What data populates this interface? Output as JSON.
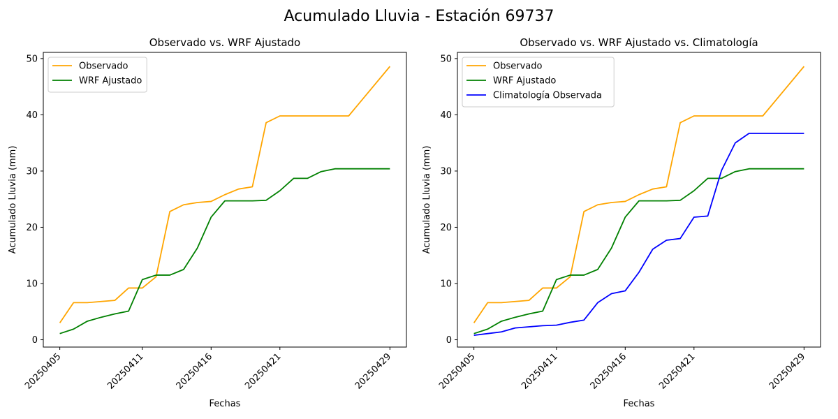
{
  "figure": {
    "suptitle": "Acumulado Lluvia - Estación 69737"
  },
  "colors": {
    "observado": "#ffa500",
    "wrf": "#008000",
    "clim": "#0000ff"
  },
  "chart_data": [
    {
      "type": "line",
      "title": "Observado vs. WRF Ajustado",
      "xlabel": "Fechas",
      "ylabel": "Acumulado Lluvia (mm)",
      "x_ticks": [
        "20250405",
        "20250411",
        "20250416",
        "20250421",
        "20250429"
      ],
      "y_ticks": [
        0,
        10,
        20,
        30,
        40,
        50
      ],
      "ylim": [
        -1.3,
        51.1
      ],
      "legend_position": "upper-left",
      "grid": false,
      "x": [
        "20250405",
        "20250406",
        "20250407",
        "20250408",
        "20250409",
        "20250410",
        "20250411",
        "20250412",
        "20250413",
        "20250414",
        "20250415",
        "20250416",
        "20250417",
        "20250418",
        "20250419",
        "20250420",
        "20250421",
        "20250422",
        "20250423",
        "20250424",
        "20250425",
        "20250426",
        "20250429"
      ],
      "series": [
        {
          "name": "Observado",
          "color_key": "observado",
          "values": [
            3.0,
            6.6,
            6.6,
            6.8,
            7.0,
            9.2,
            9.2,
            11.2,
            22.8,
            24.0,
            24.4,
            24.6,
            25.8,
            26.8,
            27.2,
            38.6,
            39.8,
            39.8,
            39.8,
            39.8,
            39.8,
            39.8,
            48.6
          ]
        },
        {
          "name": "WRF Ajustado",
          "color_key": "wrf",
          "values": [
            1.1,
            1.9,
            3.3,
            4.0,
            4.6,
            5.1,
            10.7,
            11.5,
            11.5,
            12.5,
            16.3,
            21.8,
            24.7,
            24.7,
            24.7,
            24.8,
            26.5,
            28.7,
            28.7,
            29.9,
            30.4,
            30.4,
            30.4
          ]
        }
      ]
    },
    {
      "type": "line",
      "title": "Observado vs. WRF Ajustado vs. Climatología",
      "xlabel": "Fechas",
      "ylabel": "Acumulado Lluvia (mm)",
      "x_ticks": [
        "20250405",
        "20250411",
        "20250416",
        "20250421",
        "20250429"
      ],
      "y_ticks": [
        0,
        10,
        20,
        30,
        40,
        50
      ],
      "ylim": [
        -1.3,
        51.1
      ],
      "legend_position": "upper-left",
      "grid": false,
      "x": [
        "20250405",
        "20250406",
        "20250407",
        "20250408",
        "20250409",
        "20250410",
        "20250411",
        "20250412",
        "20250413",
        "20250414",
        "20250415",
        "20250416",
        "20250417",
        "20250418",
        "20250419",
        "20250420",
        "20250421",
        "20250422",
        "20250423",
        "20250424",
        "20250425",
        "20250426",
        "20250429"
      ],
      "series": [
        {
          "name": "Observado",
          "color_key": "observado",
          "values": [
            3.0,
            6.6,
            6.6,
            6.8,
            7.0,
            9.2,
            9.2,
            11.2,
            22.8,
            24.0,
            24.4,
            24.6,
            25.8,
            26.8,
            27.2,
            38.6,
            39.8,
            39.8,
            39.8,
            39.8,
            39.8,
            39.8,
            48.6
          ]
        },
        {
          "name": "WRF Ajustado",
          "color_key": "wrf",
          "values": [
            1.1,
            1.9,
            3.3,
            4.0,
            4.6,
            5.1,
            10.7,
            11.5,
            11.5,
            12.5,
            16.3,
            21.8,
            24.7,
            24.7,
            24.7,
            24.8,
            26.5,
            28.7,
            28.7,
            29.9,
            30.4,
            30.4,
            30.4
          ]
        },
        {
          "name": "Climatología Observada",
          "color_key": "clim",
          "values": [
            0.8,
            1.1,
            1.4,
            2.1,
            2.3,
            2.5,
            2.6,
            3.1,
            3.5,
            6.6,
            8.2,
            8.7,
            12.0,
            16.1,
            17.7,
            18.0,
            21.8,
            22.0,
            30.1,
            35.0,
            36.7,
            36.7,
            36.7
          ]
        }
      ]
    }
  ]
}
